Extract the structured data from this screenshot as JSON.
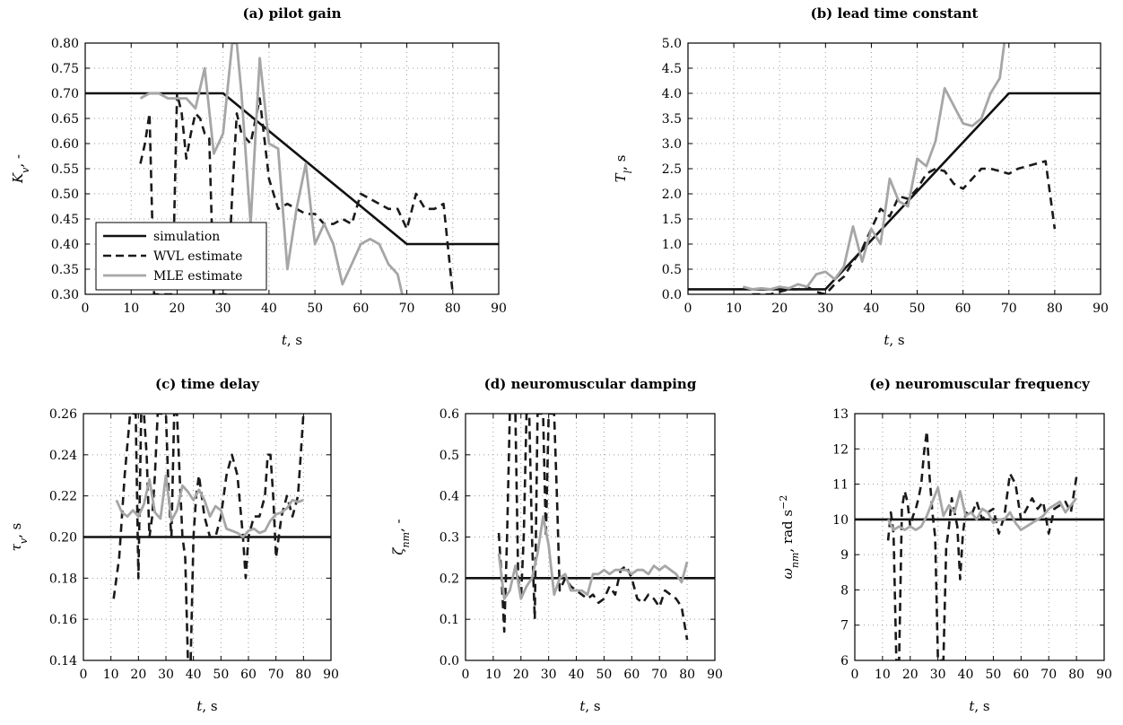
{
  "figure": {
    "legend": [
      "simulation",
      "WVL estimate",
      "MLE estimate"
    ],
    "colors": {
      "simulation": "#111111",
      "wvl": "#1a1a1a",
      "mle": "#a6a6a6",
      "grid": "#9a9a9a"
    }
  },
  "chart_data": [
    {
      "type": "line",
      "title": "(a) pilot gain",
      "xlabel": "t, s",
      "ylabel": "K_v, -",
      "xlim": [
        0,
        90
      ],
      "ylim": [
        0.3,
        0.8
      ],
      "xticks": [
        0,
        10,
        20,
        30,
        40,
        50,
        60,
        70,
        80,
        90
      ],
      "yticks": [
        0.3,
        0.35,
        0.4,
        0.45,
        0.5,
        0.55,
        0.6,
        0.65,
        0.7,
        0.75,
        0.8
      ],
      "ytick_decimals": 2,
      "grid": true,
      "legend_position": "bottom-left",
      "series": [
        {
          "name": "simulation",
          "x": [
            0,
            30,
            70,
            90
          ],
          "y": [
            0.7,
            0.7,
            0.4,
            0.4
          ]
        },
        {
          "name": "WVL estimate",
          "x": [
            12,
            13,
            14,
            15,
            16,
            17,
            18,
            19,
            20,
            21,
            22,
            23,
            24,
            25,
            26,
            27,
            28,
            29,
            30,
            31,
            32,
            33,
            34,
            36,
            38,
            40,
            42,
            44,
            46,
            48,
            50,
            52,
            54,
            56,
            58,
            60,
            62,
            64,
            66,
            68,
            70,
            72,
            74,
            76,
            78,
            80
          ],
          "y": [
            0.56,
            0.6,
            0.66,
            0.3,
            0.3,
            0.3,
            0.3,
            0.3,
            0.7,
            0.66,
            0.57,
            0.62,
            0.66,
            0.65,
            0.62,
            0.61,
            0.3,
            0.3,
            0.3,
            0.3,
            0.5,
            0.66,
            0.62,
            0.6,
            0.69,
            0.53,
            0.47,
            0.48,
            0.47,
            0.46,
            0.46,
            0.44,
            0.44,
            0.45,
            0.44,
            0.5,
            0.49,
            0.48,
            0.47,
            0.47,
            0.43,
            0.5,
            0.47,
            0.47,
            0.48,
            0.3
          ]
        },
        {
          "name": "MLE estimate",
          "x": [
            12,
            14,
            16,
            18,
            20,
            22,
            24,
            26,
            28,
            30,
            32,
            33,
            34,
            36,
            38,
            40,
            42,
            44,
            46,
            48,
            50,
            52,
            54,
            56,
            58,
            60,
            62,
            64,
            66,
            68,
            69
          ],
          "y": [
            0.69,
            0.7,
            0.7,
            0.69,
            0.69,
            0.69,
            0.67,
            0.75,
            0.58,
            0.62,
            0.8,
            0.8,
            0.7,
            0.44,
            0.77,
            0.6,
            0.59,
            0.35,
            0.47,
            0.56,
            0.4,
            0.44,
            0.4,
            0.32,
            0.36,
            0.4,
            0.41,
            0.4,
            0.36,
            0.34,
            0.3
          ]
        }
      ]
    },
    {
      "type": "line",
      "title": "(b) lead time constant",
      "xlabel": "t, s",
      "ylabel": "T_l, s",
      "xlim": [
        0,
        90
      ],
      "ylim": [
        0.0,
        5.0
      ],
      "xticks": [
        0,
        10,
        20,
        30,
        40,
        50,
        60,
        70,
        80,
        90
      ],
      "yticks": [
        0.0,
        0.5,
        1.0,
        1.5,
        2.0,
        2.5,
        3.0,
        3.5,
        4.0,
        4.5,
        5.0
      ],
      "ytick_decimals": 1,
      "grid": true,
      "series": [
        {
          "name": "simulation",
          "x": [
            0,
            30,
            70,
            90
          ],
          "y": [
            0.1,
            0.1,
            4.0,
            4.0
          ]
        },
        {
          "name": "WVL estimate",
          "x": [
            14,
            16,
            18,
            20,
            22,
            24,
            26,
            28,
            30,
            32,
            34,
            36,
            38,
            40,
            42,
            44,
            46,
            48,
            50,
            52,
            54,
            56,
            58,
            60,
            62,
            64,
            66,
            68,
            70,
            72,
            74,
            76,
            78,
            80
          ],
          "y": [
            0.0,
            0.0,
            0.0,
            0.05,
            0.1,
            0.1,
            0.15,
            0.05,
            0.0,
            0.2,
            0.35,
            0.65,
            0.9,
            1.3,
            1.7,
            1.55,
            1.95,
            1.9,
            2.1,
            2.4,
            2.5,
            2.45,
            2.2,
            2.1,
            2.3,
            2.5,
            2.5,
            2.45,
            2.4,
            2.5,
            2.55,
            2.6,
            2.65,
            1.3
          ]
        },
        {
          "name": "MLE estimate",
          "x": [
            12,
            14,
            16,
            18,
            20,
            22,
            24,
            26,
            28,
            30,
            32,
            34,
            36,
            38,
            40,
            42,
            44,
            46,
            48,
            50,
            52,
            54,
            56,
            58,
            60,
            62,
            64,
            66,
            68,
            69
          ],
          "y": [
            0.15,
            0.1,
            0.12,
            0.1,
            0.15,
            0.12,
            0.2,
            0.15,
            0.4,
            0.45,
            0.3,
            0.55,
            1.35,
            0.65,
            1.3,
            1.0,
            2.3,
            1.85,
            1.75,
            2.7,
            2.55,
            3.05,
            4.1,
            3.75,
            3.4,
            3.35,
            3.5,
            4.0,
            4.3,
            5.0
          ]
        }
      ]
    },
    {
      "type": "line",
      "title": "(c) time delay",
      "xlabel": "t, s",
      "ylabel": "τ_v, s",
      "xlim": [
        0,
        90
      ],
      "ylim": [
        0.14,
        0.26
      ],
      "xticks": [
        0,
        10,
        20,
        30,
        40,
        50,
        60,
        70,
        80,
        90
      ],
      "yticks": [
        0.14,
        0.16,
        0.18,
        0.2,
        0.22,
        0.24,
        0.26
      ],
      "ytick_decimals": 2,
      "grid": true,
      "series": [
        {
          "name": "simulation",
          "x": [
            0,
            90
          ],
          "y": [
            0.2,
            0.2
          ]
        },
        {
          "name": "WVL estimate",
          "x": [
            11,
            13,
            15,
            17,
            18,
            19,
            20,
            21,
            22,
            23,
            24,
            25,
            26,
            27,
            28,
            29,
            30,
            31,
            32,
            33,
            34,
            35,
            36,
            37,
            38,
            39,
            40,
            41,
            42,
            43,
            44,
            46,
            48,
            50,
            52,
            54,
            56,
            58,
            59,
            60,
            62,
            64,
            66,
            67,
            68,
            69,
            70,
            72,
            74,
            76,
            78,
            79,
            80
          ],
          "y": [
            0.17,
            0.19,
            0.23,
            0.26,
            0.26,
            0.26,
            0.18,
            0.26,
            0.26,
            0.24,
            0.2,
            0.21,
            0.23,
            0.26,
            0.26,
            0.26,
            0.26,
            0.22,
            0.2,
            0.26,
            0.26,
            0.23,
            0.2,
            0.19,
            0.14,
            0.14,
            0.2,
            0.22,
            0.23,
            0.22,
            0.21,
            0.2,
            0.2,
            0.21,
            0.23,
            0.24,
            0.23,
            0.2,
            0.18,
            0.2,
            0.21,
            0.21,
            0.22,
            0.24,
            0.24,
            0.22,
            0.19,
            0.21,
            0.22,
            0.21,
            0.22,
            0.24,
            0.26
          ]
        },
        {
          "name": "MLE estimate",
          "x": [
            12,
            14,
            16,
            18,
            20,
            22,
            24,
            26,
            28,
            30,
            32,
            34,
            36,
            38,
            40,
            42,
            44,
            46,
            48,
            50,
            52,
            54,
            56,
            58,
            60,
            62,
            64,
            66,
            68,
            70,
            72,
            74,
            76,
            78,
            80
          ],
          "y": [
            0.218,
            0.212,
            0.21,
            0.213,
            0.21,
            0.216,
            0.228,
            0.212,
            0.209,
            0.23,
            0.208,
            0.213,
            0.225,
            0.222,
            0.218,
            0.223,
            0.218,
            0.21,
            0.215,
            0.213,
            0.204,
            0.203,
            0.202,
            0.2,
            0.203,
            0.204,
            0.202,
            0.203,
            0.208,
            0.211,
            0.212,
            0.214,
            0.218,
            0.217,
            0.218
          ]
        }
      ]
    },
    {
      "type": "line",
      "title": "(d) neuromuscular damping",
      "xlabel": "t, s",
      "ylabel": "ζ_nm, -",
      "xlim": [
        0,
        90
      ],
      "ylim": [
        0.0,
        0.6
      ],
      "xticks": [
        0,
        10,
        20,
        30,
        40,
        50,
        60,
        70,
        80,
        90
      ],
      "yticks": [
        0.0,
        0.1,
        0.2,
        0.3,
        0.4,
        0.5,
        0.6
      ],
      "ytick_decimals": 1,
      "grid": true,
      "series": [
        {
          "name": "simulation",
          "x": [
            0,
            90
          ],
          "y": [
            0.2,
            0.2
          ]
        },
        {
          "name": "WVL estimate",
          "x": [
            12,
            13,
            14,
            15,
            16,
            17,
            18,
            19,
            20,
            21,
            22,
            23,
            24,
            25,
            26,
            27,
            28,
            29,
            30,
            31,
            32,
            33,
            34,
            36,
            38,
            40,
            42,
            44,
            46,
            48,
            50,
            52,
            54,
            56,
            58,
            60,
            62,
            64,
            66,
            68,
            70,
            72,
            74,
            76,
            78,
            80
          ],
          "y": [
            0.31,
            0.2,
            0.07,
            0.3,
            0.6,
            0.6,
            0.6,
            0.2,
            0.15,
            0.3,
            0.6,
            0.6,
            0.3,
            0.1,
            0.6,
            0.6,
            0.6,
            0.3,
            0.6,
            0.6,
            0.6,
            0.4,
            0.17,
            0.2,
            0.18,
            0.17,
            0.16,
            0.15,
            0.16,
            0.14,
            0.15,
            0.18,
            0.16,
            0.22,
            0.23,
            0.2,
            0.15,
            0.14,
            0.16,
            0.15,
            0.13,
            0.17,
            0.16,
            0.15,
            0.13,
            0.05
          ]
        },
        {
          "name": "MLE estimate",
          "x": [
            12,
            14,
            16,
            18,
            20,
            22,
            24,
            26,
            28,
            30,
            32,
            34,
            36,
            38,
            40,
            42,
            44,
            46,
            48,
            50,
            52,
            54,
            56,
            58,
            60,
            62,
            64,
            66,
            68,
            70,
            72,
            74,
            76,
            78,
            80
          ],
          "y": [
            0.26,
            0.15,
            0.17,
            0.23,
            0.15,
            0.18,
            0.2,
            0.26,
            0.35,
            0.28,
            0.16,
            0.2,
            0.21,
            0.17,
            0.17,
            0.17,
            0.16,
            0.21,
            0.21,
            0.22,
            0.21,
            0.22,
            0.22,
            0.22,
            0.21,
            0.22,
            0.22,
            0.21,
            0.23,
            0.22,
            0.23,
            0.22,
            0.21,
            0.19,
            0.24
          ]
        }
      ]
    },
    {
      "type": "line",
      "title": "(e) neuromuscular frequency",
      "xlabel": "t, s",
      "ylabel": "ω_nm, rad s^-2",
      "xlim": [
        0,
        90
      ],
      "ylim": [
        6,
        13
      ],
      "xticks": [
        0,
        10,
        20,
        30,
        40,
        50,
        60,
        70,
        80,
        90
      ],
      "yticks": [
        6,
        7,
        8,
        9,
        10,
        11,
        12,
        13
      ],
      "ytick_decimals": 0,
      "grid": true,
      "series": [
        {
          "name": "simulation",
          "x": [
            0,
            90
          ],
          "y": [
            10,
            10
          ]
        },
        {
          "name": "WVL estimate",
          "x": [
            12,
            13,
            14,
            15,
            16,
            17,
            18,
            19,
            20,
            21,
            22,
            23,
            24,
            25,
            26,
            27,
            28,
            29,
            30,
            31,
            32,
            33,
            34,
            35,
            36,
            37,
            38,
            39,
            40,
            42,
            44,
            46,
            48,
            50,
            52,
            54,
            56,
            58,
            60,
            62,
            64,
            66,
            68,
            70,
            72,
            74,
            76,
            78,
            80
          ],
          "y": [
            9.4,
            10.2,
            9.6,
            6.0,
            6.0,
            10.3,
            10.8,
            10.5,
            9.8,
            10.1,
            10.3,
            10.6,
            11.0,
            11.9,
            12.5,
            11.2,
            10.2,
            9.5,
            6.0,
            6.0,
            6.0,
            9.2,
            9.8,
            10.6,
            10.2,
            9.8,
            8.3,
            9.6,
            10.2,
            10.1,
            10.5,
            10.0,
            10.2,
            10.3,
            9.6,
            10.1,
            11.3,
            11.0,
            10.0,
            10.3,
            10.6,
            10.3,
            10.5,
            9.6,
            10.3,
            10.4,
            10.5,
            10.2,
            11.2
          ]
        },
        {
          "name": "MLE estimate",
          "x": [
            12,
            14,
            16,
            18,
            20,
            22,
            24,
            26,
            28,
            30,
            32,
            34,
            36,
            38,
            40,
            42,
            44,
            46,
            48,
            50,
            52,
            54,
            56,
            58,
            60,
            62,
            64,
            66,
            68,
            70,
            72,
            74,
            76,
            78,
            80
          ],
          "y": [
            10.0,
            9.7,
            9.8,
            9.7,
            9.8,
            9.7,
            9.8,
            10.1,
            10.5,
            10.9,
            10.1,
            10.4,
            10.2,
            10.8,
            10.1,
            10.2,
            10.0,
            10.3,
            10.2,
            9.9,
            10.0,
            10.0,
            10.2,
            9.9,
            9.7,
            9.8,
            9.9,
            10.0,
            10.1,
            10.3,
            10.4,
            10.5,
            10.2,
            10.4,
            10.6
          ]
        }
      ]
    }
  ]
}
